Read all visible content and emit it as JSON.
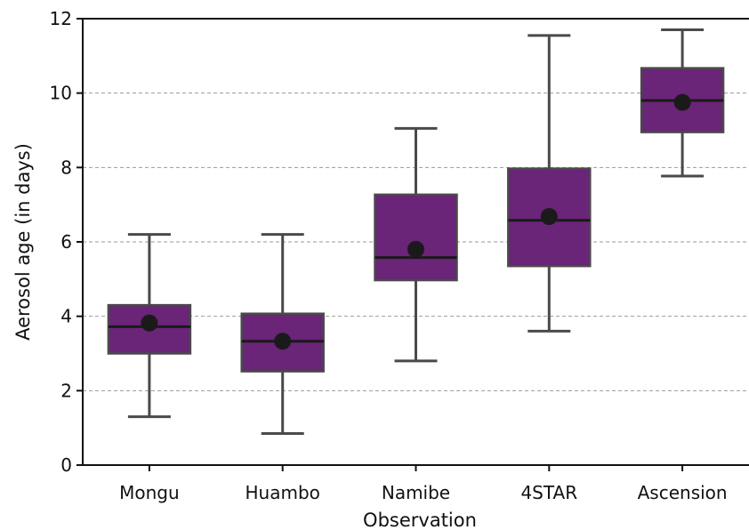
{
  "chart_data": {
    "type": "boxplot",
    "xlabel": "Observation",
    "ylabel": "Aerosol age (in days)",
    "ylim": [
      0,
      12
    ],
    "yticks": [
      0,
      2,
      4,
      6,
      8,
      10,
      12
    ],
    "grid": "horizontal dashed",
    "categories": [
      "Mongu",
      "Huambo",
      "Namibe",
      "4STAR",
      "Ascension"
    ],
    "boxes": [
      {
        "category": "Mongu",
        "whisker_low": 1.3,
        "q1": 3.0,
        "median": 3.72,
        "q3": 4.3,
        "whisker_high": 6.2,
        "mean": 3.82
      },
      {
        "category": "Huambo",
        "whisker_low": 0.85,
        "q1": 2.52,
        "median": 3.33,
        "q3": 4.07,
        "whisker_high": 6.2,
        "mean": 3.33
      },
      {
        "category": "Namibe",
        "whisker_low": 2.8,
        "q1": 4.97,
        "median": 5.58,
        "q3": 7.27,
        "whisker_high": 9.05,
        "mean": 5.8
      },
      {
        "category": "4STAR",
        "whisker_low": 3.6,
        "q1": 5.35,
        "median": 6.58,
        "q3": 7.97,
        "whisker_high": 11.55,
        "mean": 6.68
      },
      {
        "category": "Ascension",
        "whisker_low": 7.77,
        "q1": 8.95,
        "median": 9.8,
        "q3": 10.67,
        "whisker_high": 11.7,
        "mean": 9.75
      }
    ],
    "colors": {
      "box_fill": "#6a2478",
      "box_edge": "#4a4a4a",
      "whisker": "#4a4a4a",
      "median_line": "#1a1a1a",
      "mean_marker": "#1a1a1a",
      "grid": "#999999",
      "axis": "#111111"
    }
  }
}
